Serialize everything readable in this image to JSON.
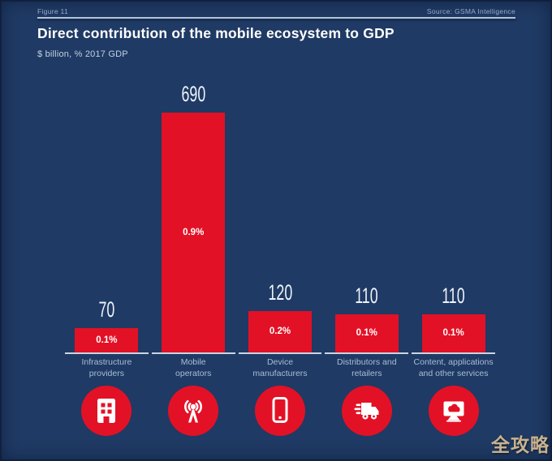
{
  "meta": {
    "figure_label": "Figure 11",
    "source": "Source: GSMA Intelligence"
  },
  "header": {
    "title": "Direct contribution of the mobile ecosystem to GDP",
    "subtitle": "$ billion, % 2017 GDP"
  },
  "colors": {
    "background": "#1f3a64",
    "bar_red": "#e31126",
    "text_white": "#ffffff",
    "text_light_blue": "#a9bdd6",
    "axis_line": "#c9d6e4",
    "watermark_tan": "#c9b28e"
  },
  "chart_data": {
    "type": "bar",
    "title": "Direct contribution of the mobile ecosystem to GDP",
    "subtitle": "$ billion, % 2017 GDP",
    "unit": "$ billion",
    "categories": [
      "Infrastructure providers",
      "Mobile operators",
      "Device manufacturers",
      "Distributors and retailers",
      "Content, applications and other services"
    ],
    "values": [
      70,
      690,
      120,
      110,
      110
    ],
    "percent_labels": [
      "0.1%",
      "0.9%",
      "0.2%",
      "0.1%",
      "0.1%"
    ],
    "ylim": [
      0,
      700
    ],
    "grid": false,
    "legend": false,
    "bar_color": "#e31126"
  },
  "columns": [
    {
      "label_lines": [
        "Infrastructure",
        "providers"
      ],
      "icon": "building-icon"
    },
    {
      "label_lines": [
        "Mobile",
        "operators"
      ],
      "icon": "antenna-icon"
    },
    {
      "label_lines": [
        "Device",
        "manufacturers"
      ],
      "icon": "smartphone-icon"
    },
    {
      "label_lines": [
        "Distributors and",
        "retailers"
      ],
      "icon": "truck-icon"
    },
    {
      "label_lines": [
        "Content, applications",
        "and other services"
      ],
      "icon": "monitor-cloud-icon"
    }
  ],
  "watermark": {
    "text": "全攻略"
  }
}
